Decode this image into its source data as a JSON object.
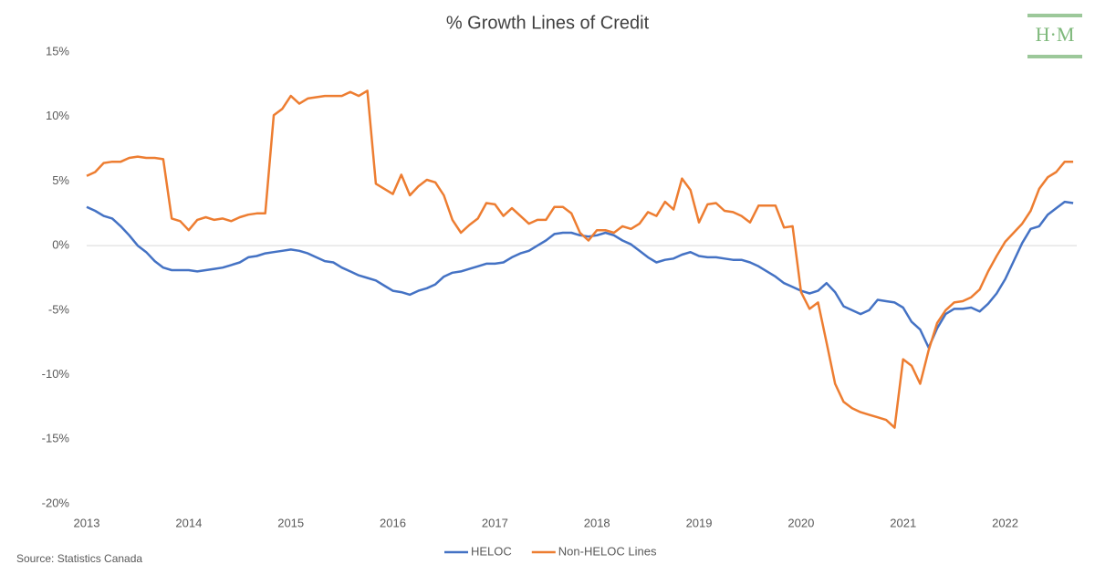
{
  "chart_data": {
    "type": "line",
    "title": "% Growth Lines of Credit",
    "source": "Source: Statistics Canada",
    "logo": "H·M",
    "categories": [
      "2013",
      null,
      null,
      null,
      null,
      null,
      null,
      null,
      null,
      null,
      null,
      null,
      "2014",
      null,
      null,
      null,
      null,
      null,
      null,
      null,
      null,
      null,
      null,
      null,
      "2015",
      null,
      null,
      null,
      null,
      null,
      null,
      null,
      null,
      null,
      null,
      null,
      "2016",
      null,
      null,
      null,
      null,
      null,
      null,
      null,
      null,
      null,
      null,
      null,
      "2017",
      null,
      null,
      null,
      null,
      null,
      null,
      null,
      null,
      null,
      null,
      null,
      "2018",
      null,
      null,
      null,
      null,
      null,
      null,
      null,
      null,
      null,
      null,
      null,
      "2019",
      null,
      null,
      null,
      null,
      null,
      null,
      null,
      null,
      null,
      null,
      null,
      "2020",
      null,
      null,
      null,
      null,
      null,
      null,
      null,
      null,
      null,
      null,
      null,
      "2021",
      null,
      null,
      null,
      null,
      null,
      null,
      null,
      null,
      null,
      null,
      null,
      "2022",
      null,
      null,
      null,
      null,
      null,
      null,
      null,
      null
    ],
    "series": [
      {
        "name": "HELOC",
        "color": "#4472c4",
        "values": [
          3.0,
          2.7,
          2.3,
          2.1,
          1.5,
          0.8,
          0.0,
          -0.5,
          -1.2,
          -1.7,
          -1.9,
          -1.9,
          -1.9,
          -2.0,
          -1.9,
          -1.8,
          -1.7,
          -1.5,
          -1.3,
          -0.9,
          -0.8,
          -0.6,
          -0.5,
          -0.4,
          -0.3,
          -0.4,
          -0.6,
          -0.9,
          -1.2,
          -1.3,
          -1.7,
          -2.0,
          -2.3,
          -2.5,
          -2.7,
          -3.1,
          -3.5,
          -3.6,
          -3.8,
          -3.5,
          -3.3,
          -3.0,
          -2.4,
          -2.1,
          -2.0,
          -1.8,
          -1.6,
          -1.4,
          -1.4,
          -1.3,
          -0.9,
          -0.6,
          -0.4,
          0.0,
          0.4,
          0.9,
          1.0,
          1.0,
          0.8,
          0.7,
          0.8,
          1.0,
          0.8,
          0.4,
          0.1,
          -0.4,
          -0.9,
          -1.3,
          -1.1,
          -1.0,
          -0.7,
          -0.5,
          -0.8,
          -0.9,
          -0.9,
          -1.0,
          -1.1,
          -1.1,
          -1.3,
          -1.6,
          -2.0,
          -2.4,
          -2.9,
          -3.2,
          -3.5,
          -3.7,
          -3.5,
          -2.9,
          -3.6,
          -4.7,
          -5.0,
          -5.3,
          -5.0,
          -4.2,
          -4.3,
          -4.4,
          -4.8,
          -5.9,
          -6.5,
          -7.9,
          -6.4,
          -5.3,
          -4.9,
          -4.9,
          -4.8,
          -5.1,
          -4.5,
          -3.7,
          -2.6,
          -1.2,
          0.2,
          1.3,
          1.5,
          2.4,
          2.9,
          3.4,
          3.3
        ]
      },
      {
        "name": "Non-HELOC Lines",
        "color": "#ed7d31",
        "values": [
          5.4,
          5.7,
          6.4,
          6.5,
          6.5,
          6.8,
          6.9,
          6.8,
          6.8,
          6.7,
          2.1,
          1.9,
          1.2,
          2.0,
          2.2,
          2.0,
          2.1,
          1.9,
          2.2,
          2.4,
          2.5,
          2.5,
          10.1,
          10.6,
          11.6,
          11.0,
          11.4,
          11.5,
          11.6,
          11.6,
          11.6,
          11.9,
          11.6,
          12.0,
          4.8,
          4.4,
          4.0,
          5.5,
          3.9,
          4.6,
          5.1,
          4.9,
          3.9,
          2.0,
          1.0,
          1.6,
          2.1,
          3.3,
          3.2,
          2.3,
          2.9,
          2.3,
          1.7,
          2.0,
          2.0,
          3.0,
          3.0,
          2.5,
          1.0,
          0.4,
          1.2,
          1.2,
          1.0,
          1.5,
          1.3,
          1.7,
          2.6,
          2.3,
          3.4,
          2.8,
          5.2,
          4.3,
          1.8,
          3.2,
          3.3,
          2.7,
          2.6,
          2.3,
          1.8,
          3.1,
          3.1,
          3.1,
          1.4,
          1.5,
          -3.6,
          -4.9,
          -4.4,
          -7.5,
          -10.7,
          -12.1,
          -12.6,
          -12.9,
          -13.1,
          -13.3,
          -13.5,
          -14.1,
          -8.8,
          -9.3,
          -10.7,
          -8.1,
          -6.0,
          -5.0,
          -4.4,
          -4.3,
          -4.0,
          -3.4,
          -2.0,
          -0.8,
          0.3,
          1.0,
          1.7,
          2.7,
          4.4,
          5.3,
          5.7,
          6.5,
          6.5
        ]
      }
    ],
    "ylim": [
      -20,
      15
    ],
    "yticks": [
      {
        "value": -20,
        "label": "-20%"
      },
      {
        "value": -15,
        "label": "-15%"
      },
      {
        "value": -10,
        "label": "-10%"
      },
      {
        "value": -5,
        "label": "-5%"
      },
      {
        "value": 0,
        "label": "0%"
      },
      {
        "value": 5,
        "label": "5%"
      },
      {
        "value": 10,
        "label": "10%"
      },
      {
        "value": 15,
        "label": "15%"
      }
    ],
    "grid": false,
    "legend": "bottom"
  }
}
